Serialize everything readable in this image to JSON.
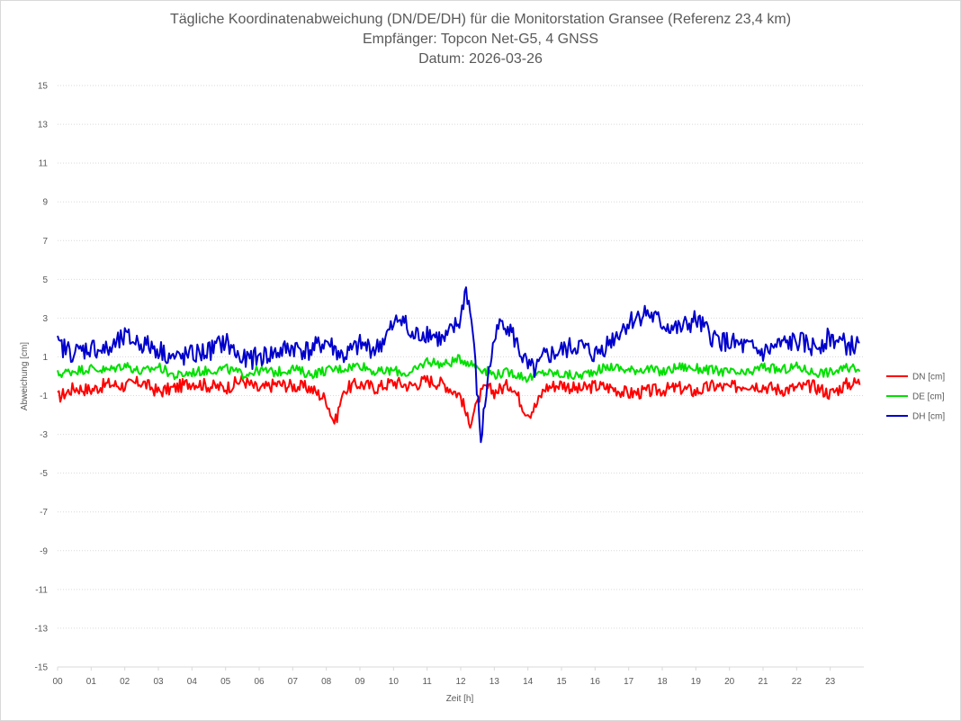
{
  "chart_data": {
    "type": "line",
    "title": "Tägliche Koordinatenabweichung (DN/DE/DH) für die Monitorstation Gransee (Referenz 23,4 km)",
    "subtitle_1": "Empfänger: Topcon Net-G5, 4 GNSS",
    "subtitle_2": "Datum: 2026-03-26",
    "xlabel": "Zeit [h]",
    "ylabel": "Abweichung [cm]",
    "xlim": [
      0,
      24
    ],
    "ylim": [
      -15,
      15
    ],
    "x_ticks": [
      "00",
      "01",
      "02",
      "03",
      "04",
      "05",
      "06",
      "07",
      "08",
      "09",
      "10",
      "11",
      "12",
      "13",
      "14",
      "15",
      "16",
      "17",
      "18",
      "19",
      "20",
      "21",
      "22",
      "23"
    ],
    "y_ticks": [
      15,
      13,
      11,
      9,
      7,
      5,
      3,
      1,
      -1,
      -3,
      -5,
      -7,
      -9,
      -11,
      -13,
      -15
    ],
    "grid": "horizontal dotted",
    "legend": "right",
    "series": [
      {
        "name": "DN [cm]",
        "color": "#ff0000",
        "x": [
          0,
          0.5,
          1,
          1.5,
          2,
          2.5,
          3,
          3.5,
          4,
          4.5,
          5,
          5.5,
          6,
          6.5,
          7,
          7.5,
          8,
          8.25,
          8.5,
          8.75,
          9,
          9.5,
          10,
          10.5,
          11,
          11.5,
          12,
          12.25,
          12.5,
          12.75,
          13,
          13.5,
          14,
          14.25,
          14.5,
          15,
          15.5,
          16,
          16.5,
          17,
          17.5,
          18,
          18.5,
          19,
          19.5,
          20,
          20.5,
          21,
          21.5,
          22,
          22.5,
          23,
          23.5,
          23.9
        ],
        "values": [
          -1.1,
          -0.6,
          -0.7,
          -0.4,
          -0.5,
          -0.3,
          -0.8,
          -0.6,
          -0.3,
          -0.5,
          -0.6,
          -0.2,
          -0.7,
          -0.4,
          -0.5,
          -0.6,
          -1.2,
          -2.5,
          -0.8,
          -0.5,
          -0.4,
          -0.6,
          -0.3,
          -0.5,
          -0.2,
          -0.4,
          -1.0,
          -2.5,
          -1.2,
          -0.6,
          -0.8,
          -0.4,
          -2.0,
          -1.5,
          -0.6,
          -0.4,
          -0.7,
          -0.5,
          -0.6,
          -0.9,
          -0.8,
          -0.7,
          -0.6,
          -0.8,
          -0.5,
          -0.6,
          -0.4,
          -0.5,
          -0.7,
          -0.6,
          -0.5,
          -0.9,
          -0.4,
          -0.3
        ]
      },
      {
        "name": "DE [cm]",
        "color": "#00e000",
        "x": [
          0,
          0.5,
          1,
          1.5,
          2,
          2.5,
          3,
          3.5,
          4,
          4.5,
          5,
          5.5,
          6,
          6.5,
          7,
          7.5,
          8,
          8.5,
          9,
          9.5,
          10,
          10.5,
          11,
          11.5,
          12,
          12.5,
          13,
          13.5,
          14,
          14.5,
          15,
          15.5,
          16,
          16.5,
          17,
          17.5,
          18,
          18.5,
          19,
          19.5,
          20,
          20.5,
          21,
          21.5,
          22,
          22.5,
          23,
          23.5,
          23.9
        ],
        "values": [
          0.1,
          0.3,
          0.4,
          0.3,
          0.6,
          0.2,
          0.5,
          0.0,
          0.2,
          0.3,
          0.4,
          0.1,
          0.3,
          0.2,
          0.4,
          0.1,
          0.3,
          0.4,
          0.6,
          0.2,
          0.3,
          0.1,
          0.8,
          0.6,
          0.9,
          0.5,
          0.1,
          0.2,
          -0.1,
          0.2,
          0.1,
          0.0,
          0.3,
          0.5,
          0.3,
          0.4,
          0.2,
          0.5,
          0.4,
          0.3,
          0.2,
          0.1,
          0.5,
          0.3,
          0.5,
          0.2,
          0.2,
          0.4,
          0.5
        ]
      },
      {
        "name": "DH [cm]",
        "color": "#0000cc",
        "x": [
          0,
          0.5,
          1,
          1.5,
          2,
          2.5,
          3,
          3.5,
          4,
          4.5,
          5,
          5.5,
          6,
          6.5,
          7,
          7.5,
          8,
          8.5,
          9,
          9.5,
          10,
          10.25,
          10.5,
          11,
          11.5,
          12,
          12.15,
          12.35,
          12.6,
          12.8,
          13,
          13.25,
          13.5,
          14,
          14.25,
          14.5,
          15,
          15.5,
          16,
          16.5,
          17,
          17.5,
          18,
          18.5,
          19,
          19.5,
          20,
          20.5,
          21,
          21.5,
          22,
          22.5,
          23,
          23.5,
          23.9
        ],
        "values": [
          1.6,
          1.2,
          1.5,
          1.3,
          2.0,
          1.7,
          1.4,
          0.9,
          1.1,
          1.3,
          1.8,
          0.8,
          1.0,
          1.2,
          1.5,
          1.3,
          1.8,
          1.0,
          1.6,
          1.4,
          2.6,
          3.2,
          2.0,
          2.3,
          1.8,
          2.9,
          4.7,
          2.5,
          -3.4,
          -0.2,
          1.8,
          3.0,
          2.3,
          0.4,
          0.3,
          1.0,
          1.3,
          1.6,
          1.1,
          1.9,
          2.8,
          3.3,
          2.7,
          2.4,
          2.9,
          2.0,
          1.7,
          1.5,
          1.2,
          1.6,
          1.8,
          1.5,
          2.0,
          1.6,
          1.5
        ]
      }
    ]
  }
}
